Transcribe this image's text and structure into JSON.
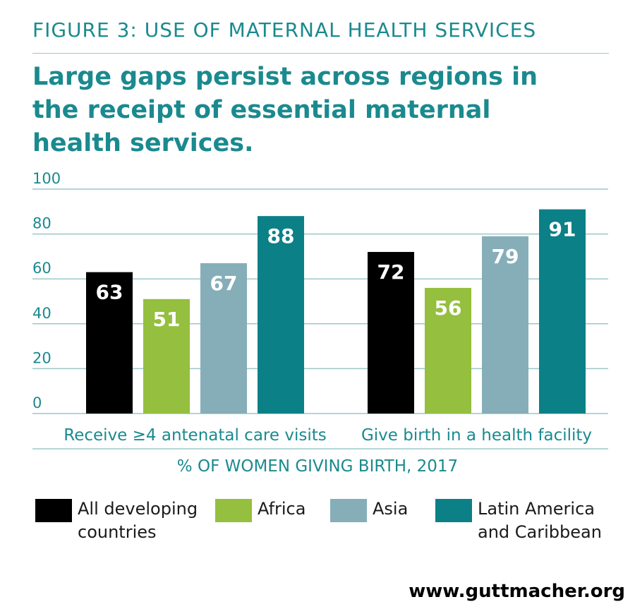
{
  "figure_label": "FIGURE 3: USE OF MATERNAL HEALTH SERVICES",
  "headline": "Large gaps persist across regions in the receipt of essential maternal health services.",
  "source": "www.guttmacher.org",
  "colors": {
    "accent": "#1a8a8f",
    "gridline": "#9cc7c9",
    "all_developing": "#000000",
    "africa": "#95bf3e",
    "asia": "#86aeb8",
    "latin_america": "#0b8087"
  },
  "chart_data": {
    "type": "bar",
    "title": "",
    "xlabel": "% OF WOMEN GIVING BIRTH, 2017",
    "ylabel": "",
    "ylim": [
      0,
      100
    ],
    "yticks": [
      0,
      20,
      40,
      60,
      80,
      100
    ],
    "grid": true,
    "categories": [
      "Receive ≥4 antenatal care visits",
      "Give birth in a health facility"
    ],
    "series": [
      {
        "name": "All developing countries",
        "color": "#000000",
        "values": [
          63,
          72
        ]
      },
      {
        "name": "Africa",
        "color": "#95bf3e",
        "values": [
          51,
          56
        ]
      },
      {
        "name": "Asia",
        "color": "#86aeb8",
        "values": [
          67,
          79
        ]
      },
      {
        "name": "Latin America and Caribbean",
        "color": "#0b8087",
        "values": [
          88,
          91
        ]
      }
    ]
  },
  "legend": [
    {
      "line1": "All developing",
      "line2": "countries"
    },
    {
      "line1": "Africa",
      "line2": ""
    },
    {
      "line1": "Asia",
      "line2": ""
    },
    {
      "line1": "Latin America",
      "line2": "and Caribbean"
    }
  ]
}
